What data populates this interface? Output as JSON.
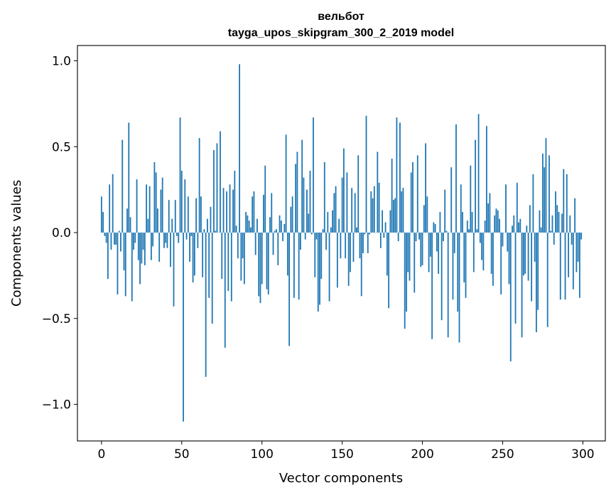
{
  "chart_data": {
    "type": "bar",
    "title": "вельбот",
    "subtitle": "tayga_upos_skipgram_300_2_2019 model",
    "xlabel": "Vector components",
    "ylabel": "Components values",
    "xlim": [
      -15,
      314
    ],
    "ylim": [
      -1.213,
      1.089
    ],
    "xticks": [
      0,
      50,
      100,
      150,
      200,
      250,
      300
    ],
    "yticks": [
      -1.0,
      -0.5,
      0.0,
      0.5,
      1.0
    ],
    "xtick_labels": [
      "0",
      "50",
      "100",
      "150",
      "200",
      "250",
      "300"
    ],
    "ytick_labels": [
      "−1.0",
      "−0.5",
      "0.0",
      "0.5",
      "1.0"
    ],
    "grid": false,
    "color": "#1f77b4",
    "values": [
      0.21,
      0.12,
      -0.02,
      -0.06,
      -0.27,
      0.28,
      -0.1,
      0.34,
      -0.07,
      -0.07,
      -0.36,
      0.01,
      -0.11,
      0.54,
      -0.22,
      -0.37,
      0.14,
      0.64,
      0.09,
      -0.4,
      -0.1,
      -0.06,
      0.31,
      -0.16,
      -0.3,
      -0.18,
      -0.1,
      -0.19,
      0.28,
      0.08,
      0.27,
      -0.16,
      -0.08,
      0.41,
      0.35,
      0.14,
      -0.17,
      0.25,
      0.32,
      -0.09,
      -0.06,
      -0.09,
      0.19,
      -0.2,
      0.08,
      -0.43,
      0.19,
      -0.02,
      -0.06,
      0.67,
      0.36,
      -1.1,
      0.31,
      -0.04,
      0.21,
      -0.17,
      -0.02,
      -0.29,
      -0.25,
      0.2,
      -0.09,
      0.55,
      0.21,
      -0.26,
      0.02,
      -0.84,
      0.08,
      -0.38,
      0.15,
      -0.53,
      0.48,
      0.01,
      0.52,
      0.0,
      0.59,
      -0.27,
      0.26,
      -0.67,
      0.24,
      -0.34,
      0.28,
      -0.4,
      0.25,
      0.36,
      0.04,
      -0.15,
      0.98,
      -0.28,
      -0.15,
      -0.3,
      0.12,
      0.1,
      0.07,
      0.03,
      0.21,
      0.24,
      -0.13,
      0.08,
      -0.37,
      -0.41,
      -0.3,
      0.22,
      0.39,
      -0.33,
      -0.36,
      0.09,
      0.23,
      -0.13,
      0.01,
      0.02,
      -0.19,
      0.1,
      0.07,
      -0.05,
      0.05,
      0.57,
      -0.25,
      -0.66,
      0.15,
      0.21,
      -0.38,
      0.4,
      0.47,
      -0.39,
      -0.1,
      0.54,
      0.32,
      -0.04,
      0.25,
      0.11,
      0.36,
      -0.01,
      0.67,
      -0.26,
      -0.04,
      -0.46,
      -0.42,
      -0.27,
      0.02,
      0.41,
      -0.1,
      0.12,
      -0.4,
      0.03,
      0.13,
      0.23,
      0.27,
      -0.32,
      0.08,
      -0.15,
      0.32,
      0.49,
      -0.15,
      0.35,
      -0.31,
      -0.23,
      0.26,
      -0.17,
      0.23,
      0.03,
      0.45,
      -0.15,
      -0.37,
      -0.12,
      -0.01,
      0.68,
      -0.12,
      -0.01,
      0.24,
      0.2,
      0.27,
      0.0,
      0.47,
      0.29,
      -0.09,
      0.13,
      -0.03,
      0.06,
      -0.25,
      -0.44,
      0.13,
      0.43,
      0.19,
      0.2,
      0.67,
      -0.05,
      0.64,
      0.24,
      0.26,
      -0.56,
      -0.46,
      -0.23,
      -0.28,
      0.35,
      0.41,
      -0.35,
      -0.05,
      0.45,
      -0.04,
      -0.2,
      -0.19,
      0.16,
      0.52,
      0.21,
      -0.23,
      -0.14,
      -0.62,
      0.06,
      0.05,
      -0.11,
      -0.24,
      0.12,
      -0.51,
      -0.05,
      0.25,
      0.01,
      -0.61,
      0.0,
      0.38,
      -0.39,
      -0.12,
      0.63,
      -0.46,
      -0.64,
      0.28,
      0.12,
      -0.29,
      -0.38,
      0.07,
      0.02,
      0.39,
      0.12,
      -0.23,
      0.54,
      0.02,
      0.69,
      -0.06,
      -0.16,
      -0.22,
      0.07,
      0.62,
      0.17,
      0.23,
      -0.24,
      -0.31,
      0.1,
      0.14,
      0.13,
      0.08,
      -0.36,
      -0.08,
      0.0,
      0.28,
      -0.11,
      -0.3,
      -0.75,
      0.04,
      0.1,
      -0.53,
      0.29,
      0.06,
      0.08,
      -0.61,
      -0.25,
      -0.24,
      0.04,
      -0.28,
      0.16,
      -0.4,
      0.34,
      -0.17,
      -0.58,
      -0.45,
      0.13,
      0.03,
      0.46,
      0.38,
      0.55,
      -0.55,
      0.45,
      0.01,
      0.1,
      -0.07,
      0.24,
      0.16,
      0.12,
      -0.39,
      0.11,
      0.37,
      -0.39,
      0.34,
      -0.26,
      0.1,
      -0.07,
      -0.33,
      0.2,
      -0.23,
      -0.17,
      -0.38,
      -0.04
    ]
  }
}
